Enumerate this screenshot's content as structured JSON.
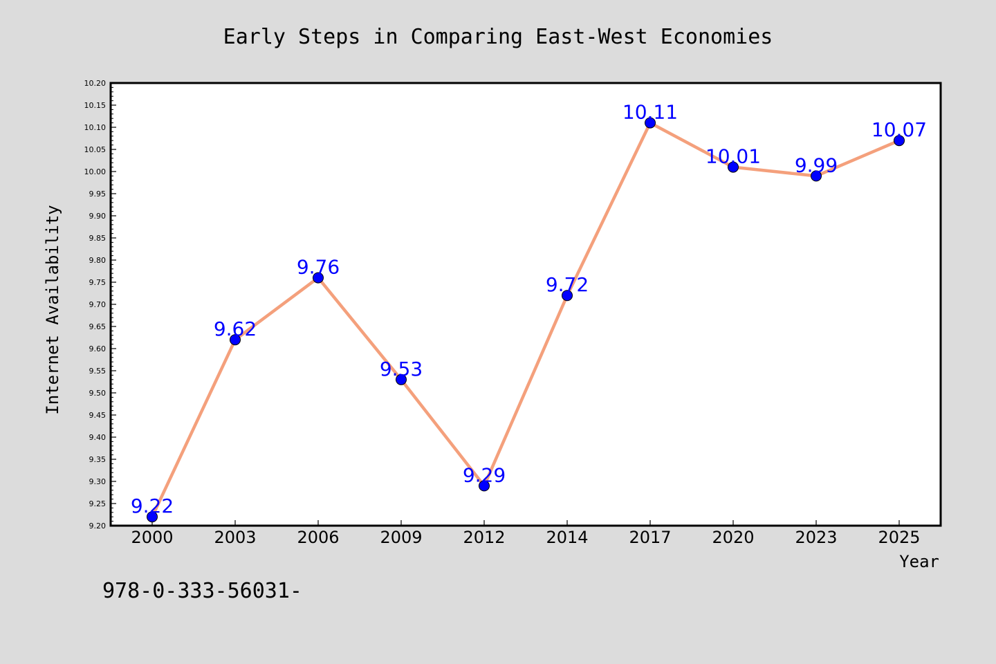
{
  "chart_data": {
    "type": "line",
    "title": "Early Steps in Comparing East-West Economies",
    "xlabel": "Year",
    "ylabel": "Internet Availability",
    "categories": [
      "2000",
      "2003",
      "2006",
      "2009",
      "2012",
      "2014",
      "2017",
      "2020",
      "2023",
      "2025"
    ],
    "series": [
      {
        "values": [
          9.22,
          9.62,
          9.76,
          9.53,
          9.29,
          9.72,
          10.11,
          10.01,
          9.99,
          10.07
        ],
        "labels": [
          "9.22",
          "9.62",
          "9.76",
          "9.53",
          "9.29",
          "9.72",
          "10.11",
          "10.01",
          "9.99",
          "10.07"
        ],
        "line_color": "#f4a07c",
        "marker_color": "#0000ff"
      }
    ],
    "ylim": [
      9.2,
      10.2
    ],
    "yticks": [
      "9.20",
      "9.25",
      "9.30",
      "9.35",
      "9.40",
      "9.45",
      "9.50",
      "9.55",
      "9.60",
      "9.65",
      "9.70",
      "9.75",
      "9.80",
      "9.85",
      "9.90",
      "9.95",
      "10.00",
      "10.05",
      "10.10",
      "10.15",
      "10.20"
    ],
    "grid": false,
    "legend": "none"
  },
  "footer_text": "978-0-333-56031-",
  "colors": {
    "background": "#dcdcdc",
    "plot_background": "#ffffff",
    "label_color": "#0000ff"
  }
}
